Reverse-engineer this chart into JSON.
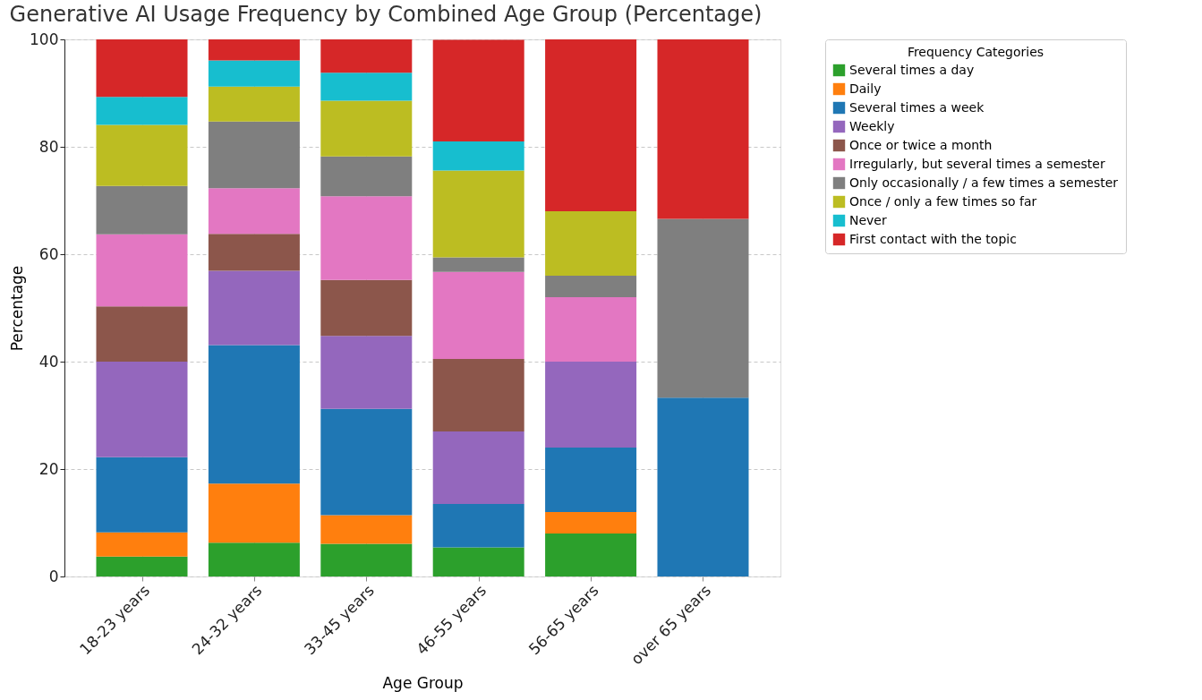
{
  "chart_data": {
    "type": "bar",
    "stacked": true,
    "title": "Generative AI Usage Frequency by Combined Age Group (Percentage)",
    "xlabel": "Age Group",
    "ylabel": "Percentage",
    "legend_title": "Frequency Categories",
    "legend": "right",
    "grid": true,
    "categories": [
      "18-23 years",
      "24-32 years",
      "33-45 years",
      "46-55 years",
      "56-65 years",
      "over 65 years"
    ],
    "ylim": [
      0,
      100
    ],
    "yticks": [
      0,
      20,
      40,
      60,
      80,
      100
    ],
    "series": [
      {
        "name": "Several times a day",
        "color": "#2ca02c",
        "values": [
          3.7,
          6.3,
          6.1,
          5.4,
          8.0,
          0
        ]
      },
      {
        "name": "Daily",
        "color": "#ff7f0e",
        "values": [
          4.5,
          11.0,
          5.3,
          0,
          4.0,
          0
        ]
      },
      {
        "name": "Several times a week",
        "color": "#1f77b4",
        "values": [
          14.0,
          25.8,
          19.8,
          8.1,
          12.0,
          33.3
        ]
      },
      {
        "name": "Weekly",
        "color": "#9467bd",
        "values": [
          17.8,
          13.8,
          13.6,
          13.5,
          16.0,
          0
        ]
      },
      {
        "name": "Once or twice a month",
        "color": "#8c564b",
        "values": [
          10.3,
          6.9,
          10.4,
          13.5,
          0,
          0
        ]
      },
      {
        "name": "Irregularly, but several times a semester",
        "color": "#e377c2",
        "values": [
          13.4,
          8.5,
          15.6,
          16.2,
          12.0,
          0
        ]
      },
      {
        "name": "Only occasionally / a few times a semester",
        "color": "#7f7f7f",
        "values": [
          9.0,
          12.4,
          7.4,
          2.7,
          4.0,
          33.3
        ]
      },
      {
        "name": "Once / only a few times so far",
        "color": "#bcbd22",
        "values": [
          11.4,
          6.5,
          10.4,
          16.2,
          12.0,
          0
        ]
      },
      {
        "name": "Never",
        "color": "#17becf",
        "values": [
          5.2,
          4.9,
          5.2,
          5.4,
          0,
          0
        ]
      },
      {
        "name": "First contact with the topic",
        "color": "#d62728",
        "values": [
          10.7,
          3.9,
          6.2,
          18.9,
          32.0,
          33.4
        ]
      }
    ]
  }
}
